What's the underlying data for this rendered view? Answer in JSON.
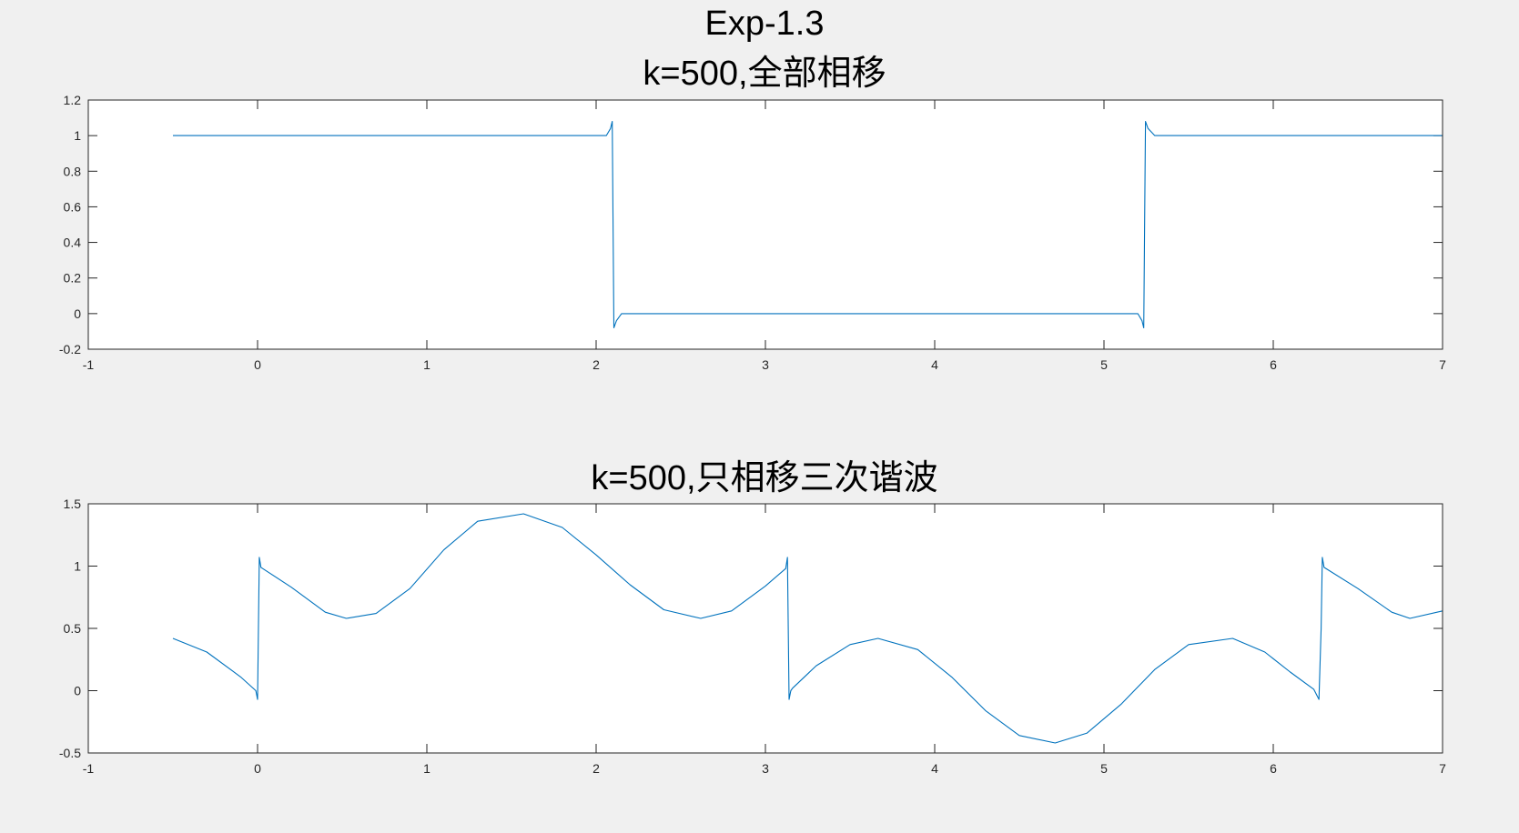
{
  "figure": {
    "suptitle": "Exp-1.3",
    "line_color": "#0072BD",
    "background": "#F0F0F0"
  },
  "chart_data": [
    {
      "type": "line",
      "title": "k=500,全部相移",
      "xlabel": "",
      "ylabel": "",
      "xlim": [
        -1,
        7
      ],
      "ylim": [
        -0.2,
        1.2
      ],
      "xticks": [
        -1,
        0,
        1,
        2,
        3,
        4,
        5,
        6,
        7
      ],
      "yticks": [
        -0.2,
        0,
        0.2,
        0.4,
        0.6,
        0.8,
        1,
        1.2
      ],
      "xtick_labels": [
        "-1",
        "0",
        "1",
        "2",
        "3",
        "4",
        "5",
        "6",
        "7"
      ],
      "ytick_labels": [
        "-0.2",
        "0",
        "0.2",
        "0.4",
        "0.6",
        "0.8",
        "1",
        "1.2"
      ],
      "grid": false,
      "series": [
        {
          "x": [
            -0.5,
            2.06,
            2.085,
            2.095,
            2.105,
            2.12,
            2.15,
            5.2,
            5.225,
            5.235,
            5.245,
            5.26,
            5.3,
            7.0
          ],
          "y": [
            1.0,
            1.0,
            1.04,
            1.08,
            -0.08,
            -0.04,
            0.0,
            0.0,
            -0.04,
            -0.08,
            1.08,
            1.04,
            1.0,
            1.0
          ]
        }
      ]
    },
    {
      "type": "line",
      "title": "k=500,只相移三次谐波",
      "xlabel": "",
      "ylabel": "",
      "xlim": [
        -1,
        7
      ],
      "ylim": [
        -0.5,
        1.5
      ],
      "xticks": [
        -1,
        0,
        1,
        2,
        3,
        4,
        5,
        6,
        7
      ],
      "yticks": [
        -0.5,
        0,
        0.5,
        1,
        1.5
      ],
      "xtick_labels": [
        "-1",
        "0",
        "1",
        "2",
        "3",
        "4",
        "5",
        "6",
        "7"
      ],
      "ytick_labels": [
        "-0.5",
        "0",
        "0.5",
        "1",
        "1.5"
      ],
      "grid": false,
      "series": [
        {
          "x": [
            -0.5,
            -0.3,
            -0.1,
            -0.01,
            0.0,
            0.01,
            0.02,
            0.2,
            0.4,
            0.524,
            0.7,
            0.9,
            1.1,
            1.3,
            1.571,
            1.8,
            2.0,
            2.2,
            2.4,
            2.618,
            2.8,
            3.0,
            3.12,
            3.13,
            3.14,
            3.15,
            3.16,
            3.3,
            3.5,
            3.665,
            3.9,
            4.1,
            4.3,
            4.5,
            4.712,
            4.9,
            5.1,
            5.3,
            5.5,
            5.76,
            5.95,
            6.1,
            6.24,
            6.27,
            6.283,
            6.29,
            6.3,
            6.5,
            6.7,
            6.807,
            7.0
          ],
          "y": [
            0.42,
            0.31,
            0.11,
            0.0,
            -0.07,
            1.07,
            0.99,
            0.83,
            0.63,
            0.58,
            0.62,
            0.82,
            1.13,
            1.36,
            1.42,
            1.31,
            1.09,
            0.85,
            0.65,
            0.58,
            0.64,
            0.84,
            0.98,
            1.07,
            -0.07,
            0.0,
            0.02,
            0.2,
            0.37,
            0.42,
            0.33,
            0.11,
            -0.16,
            -0.36,
            -0.42,
            -0.34,
            -0.11,
            0.17,
            0.37,
            0.42,
            0.31,
            0.15,
            0.01,
            -0.07,
            0.5,
            1.07,
            0.99,
            0.82,
            0.63,
            0.58,
            0.64
          ]
        }
      ]
    }
  ]
}
